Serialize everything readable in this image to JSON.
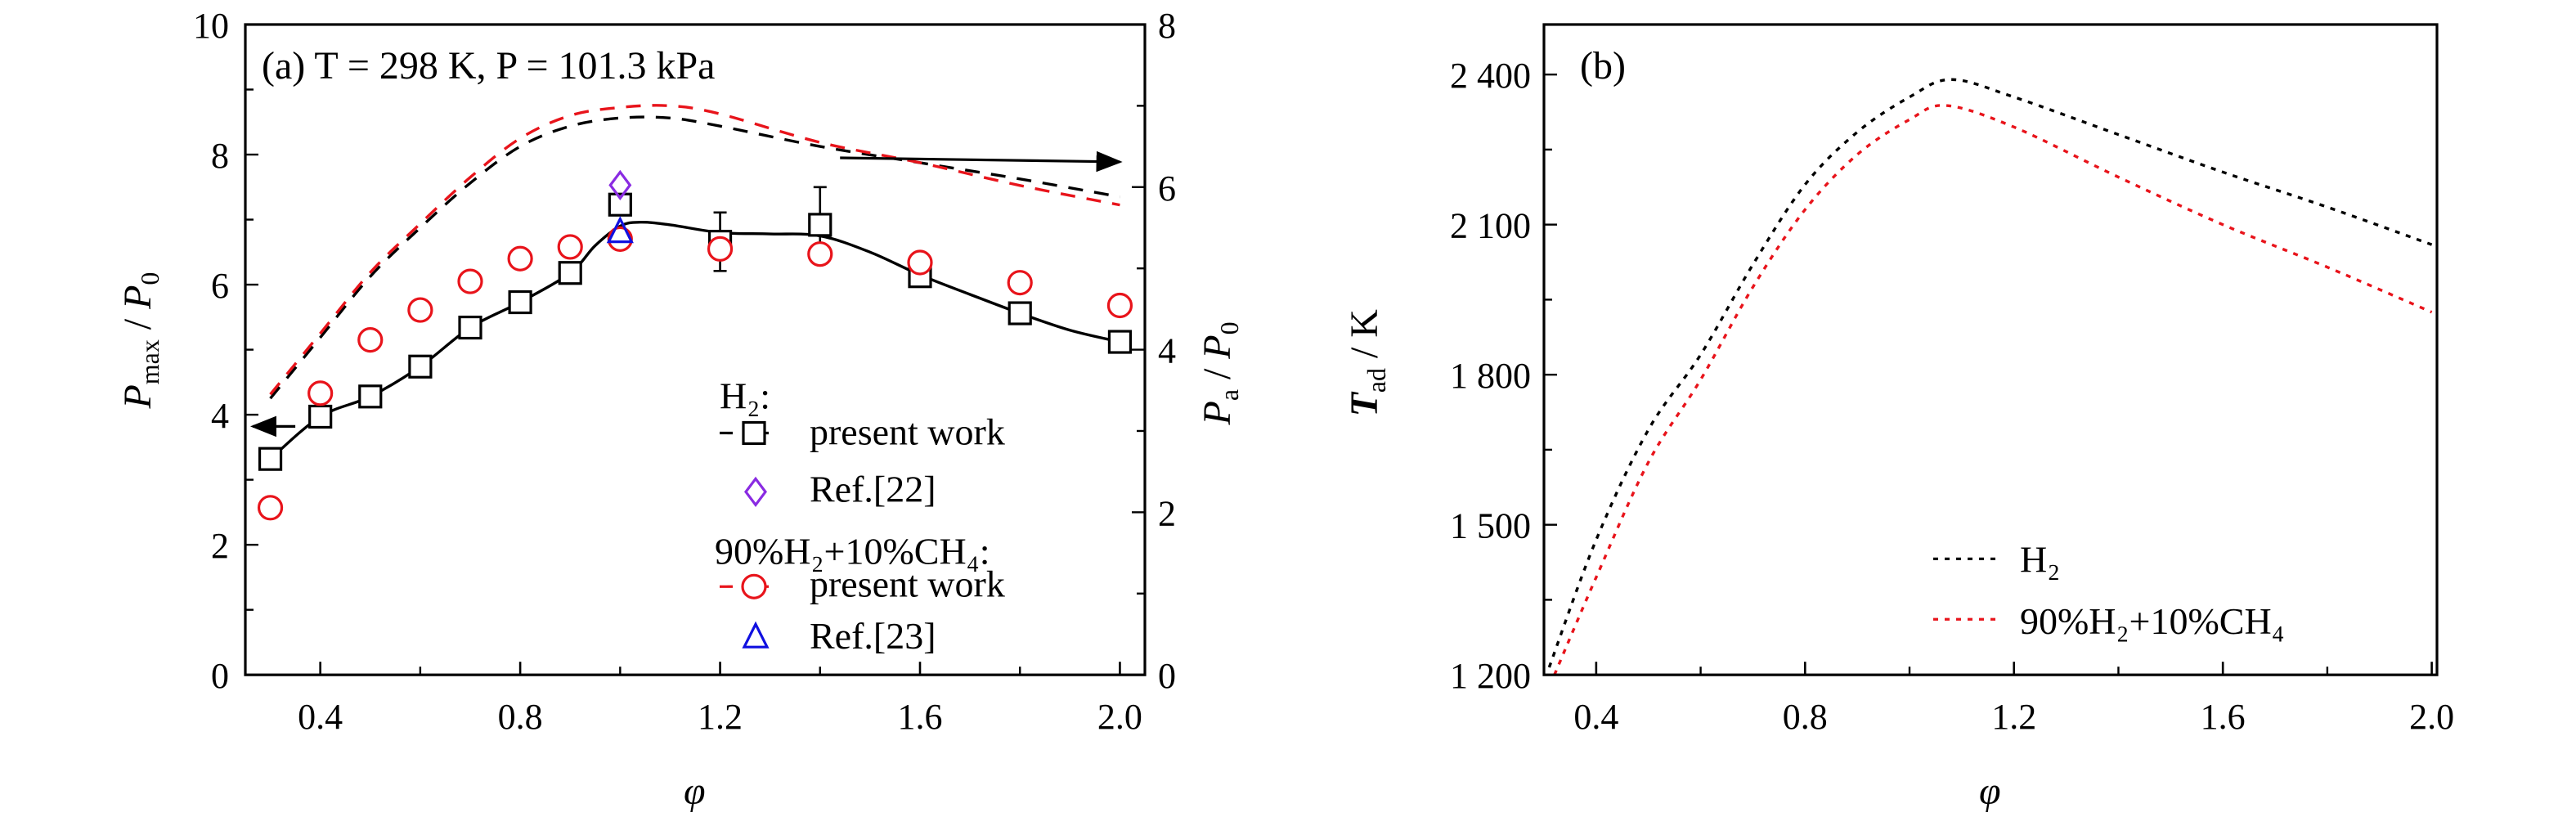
{
  "chart_data": [
    {
      "type": "line",
      "panel_label": "(a) T = 298 K, P = 101.3 kPa",
      "xlabel": "φ",
      "ylabel": {
        "main": "P",
        "sub": "max",
        "sep": " / ",
        "main2": "P",
        "sub2": "0"
      },
      "ylabel_right": {
        "main": "P",
        "sub": "a",
        "sep": " / ",
        "main2": "P",
        "sub2": "0"
      },
      "xlim": [
        0.25,
        2.05
      ],
      "ylim": [
        0,
        10
      ],
      "ylim_right": [
        0,
        8
      ],
      "xticks": [
        "0.4",
        "0.8",
        "1.2",
        "1.6",
        "2.0"
      ],
      "yticks": [
        "0",
        "2",
        "4",
        "6",
        "8",
        "10"
      ],
      "yticks_right": [
        "0",
        "2",
        "4",
        "6",
        "8"
      ],
      "grid": false,
      "legend_placement": "bottom-right",
      "legend": {
        "group1": "H₂:",
        "h2_present": "present work",
        "ref22": "Ref.[22]",
        "group2": "90%H₂+10%CH₄:",
        "mix_present": "present work",
        "ref23": "Ref.[23]"
      },
      "colors": {
        "h2": "#000000",
        "mix": "#e8141b",
        "ref22": "#8a2be2",
        "ref23": "#1010e0"
      },
      "series": [
        {
          "name": "H₂ present work",
          "axis": "left",
          "marker": "square",
          "x": [
            0.3,
            0.4,
            0.5,
            0.6,
            0.7,
            0.8,
            0.9,
            1.0,
            1.2,
            1.4,
            1.6,
            1.8,
            2.0
          ],
          "y": [
            3.32,
            3.97,
            4.28,
            4.74,
            5.34,
            5.73,
            6.18,
            7.23,
            6.66,
            6.92,
            6.13,
            5.56,
            5.12
          ],
          "err": [
            0.08,
            0.08,
            0.08,
            0.08,
            0.1,
            0.15,
            0.06,
            0.1,
            0.45,
            0.58,
            0.08,
            0.1,
            0.06
          ]
        },
        {
          "name": "H₂ present work fit",
          "axis": "left",
          "style": "solid",
          "x": [
            0.3,
            0.4,
            0.5,
            0.6,
            0.7,
            0.8,
            0.9,
            0.95,
            1.0,
            1.04,
            1.1,
            1.2,
            1.3,
            1.4,
            1.5,
            1.6,
            1.7,
            1.8,
            1.9,
            2.0
          ],
          "y": [
            3.32,
            3.97,
            4.28,
            4.74,
            5.34,
            5.73,
            6.18,
            6.6,
            6.9,
            6.96,
            6.92,
            6.8,
            6.78,
            6.75,
            6.5,
            6.15,
            5.85,
            5.56,
            5.3,
            5.12
          ]
        },
        {
          "name": "90%H₂+10%CH₄ present work",
          "axis": "left",
          "marker": "circle",
          "x": [
            0.3,
            0.4,
            0.5,
            0.6,
            0.7,
            0.8,
            0.9,
            1.0,
            1.2,
            1.4,
            1.6,
            1.8,
            2.0
          ],
          "y": [
            2.57,
            4.33,
            5.15,
            5.61,
            6.05,
            6.4,
            6.58,
            6.7,
            6.55,
            6.47,
            6.34,
            6.03,
            5.68
          ],
          "err": [
            0.08,
            0.08,
            0.08,
            0.08,
            0.08,
            0.08,
            0.06,
            0.06,
            0.06,
            0.08,
            0.06,
            0.06,
            0.06
          ]
        },
        {
          "name": "Ref.[22]",
          "axis": "left",
          "marker": "diamond",
          "x": [
            1.0
          ],
          "y": [
            7.53
          ]
        },
        {
          "name": "Ref.[23]",
          "axis": "left",
          "marker": "triangle",
          "x": [
            1.0
          ],
          "y": [
            6.81
          ]
        },
        {
          "name": "H₂ P_a",
          "axis": "right",
          "style": "dashed",
          "x": [
            0.3,
            0.4,
            0.5,
            0.6,
            0.7,
            0.8,
            0.9,
            1.0,
            1.1,
            1.2,
            1.4,
            1.6,
            1.8,
            2.0
          ],
          "y": [
            3.4,
            4.15,
            4.9,
            5.5,
            6.05,
            6.5,
            6.75,
            6.85,
            6.85,
            6.75,
            6.5,
            6.3,
            6.1,
            5.88
          ]
        },
        {
          "name": "90%H₂+10%CH₄ P_a",
          "axis": "right",
          "style": "dashed",
          "x": [
            0.3,
            0.4,
            0.5,
            0.6,
            0.7,
            0.8,
            0.9,
            1.0,
            1.1,
            1.2,
            1.4,
            1.6,
            1.8,
            2.0
          ],
          "y": [
            3.45,
            4.2,
            4.95,
            5.55,
            6.12,
            6.6,
            6.88,
            6.98,
            7.0,
            6.9,
            6.55,
            6.3,
            6.02,
            5.78
          ]
        }
      ],
      "annotations": [
        {
          "type": "arrow",
          "axis": "left",
          "from": [
            0.35,
            3.82
          ],
          "to": [
            0.265,
            3.82
          ]
        },
        {
          "type": "arrow",
          "axis": "right",
          "from": [
            1.44,
            6.36
          ],
          "to": [
            2.0,
            6.31
          ]
        }
      ]
    },
    {
      "type": "line",
      "panel_label": "(b)",
      "xlabel": "φ",
      "ylabel": {
        "main": "T",
        "sub": "ad",
        "sep": " / ",
        "unit": "K"
      },
      "xlim": [
        0.3,
        2.01
      ],
      "ylim": [
        1200,
        2500
      ],
      "xticks": [
        "0.4",
        "0.8",
        "1.2",
        "1.6",
        "2.0"
      ],
      "yticks": [
        "1 200",
        "1 500",
        "1 800",
        "2 100",
        "2 400"
      ],
      "grid": false,
      "legend_placement": "bottom-right",
      "legend": {
        "h2": "H₂",
        "mix": "90%H₂+10%CH₄"
      },
      "colors": {
        "h2": "#000000",
        "mix": "#e8141b"
      },
      "series": [
        {
          "name": "H₂",
          "style": "dotted",
          "x": [
            0.31,
            0.4,
            0.5,
            0.6,
            0.7,
            0.8,
            0.9,
            1.0,
            1.08,
            1.2,
            1.4,
            1.6,
            1.8,
            2.0
          ],
          "y": [
            1215,
            1470,
            1690,
            1840,
            2020,
            2180,
            2285,
            2355,
            2390,
            2355,
            2280,
            2205,
            2135,
            2060
          ]
        },
        {
          "name": "90%H₂+10%CH₄",
          "style": "dotted",
          "x": [
            0.32,
            0.4,
            0.5,
            0.6,
            0.7,
            0.8,
            0.9,
            1.0,
            1.07,
            1.2,
            1.4,
            1.6,
            1.8,
            2.0
          ],
          "y": [
            1200,
            1395,
            1625,
            1790,
            1975,
            2130,
            2240,
            2310,
            2338,
            2295,
            2195,
            2100,
            2015,
            1925
          ]
        }
      ]
    }
  ]
}
